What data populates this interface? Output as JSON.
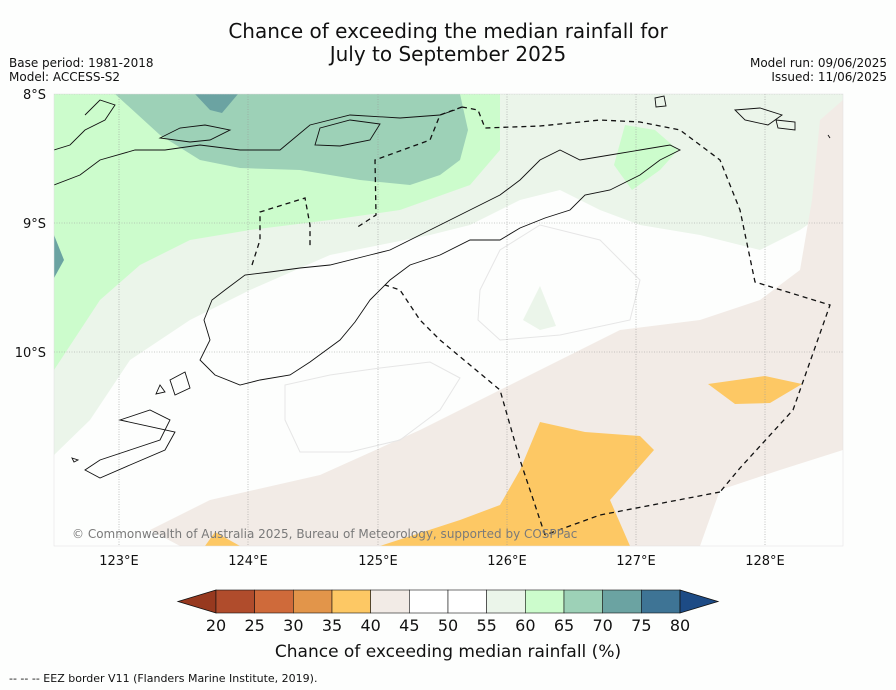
{
  "title_line1": "Chance of exceeding the median rainfall for",
  "title_line2": "July to September 2025",
  "meta_left": [
    "Base period: 1981-2018",
    "Model: ACCESS-S2"
  ],
  "meta_right": [
    "Model run: 09/06/2025",
    "Issued: 11/06/2025"
  ],
  "lat_labels": [
    "8°S",
    "9°S",
    "10°S"
  ],
  "lon_labels": [
    "123°E",
    "124°E",
    "125°E",
    "126°E",
    "127°E",
    "128°E"
  ],
  "copyright": "© Commonwealth of Australia 2025, Bureau of Meteorology, supported by COSPPac",
  "colorbar": {
    "label": "Chance of exceeding median rainfall (%)",
    "ticks": [
      "20",
      "25",
      "30",
      "35",
      "40",
      "45",
      "50",
      "55",
      "60",
      "65",
      "70",
      "75",
      "80"
    ],
    "colors": [
      "#b04c2c",
      "#cf6a3a",
      "#e2954a",
      "#fdc864",
      "#f2ebe6",
      "#ffffff",
      "#ffffff",
      "#ebf5ea",
      "#ccfccc",
      "#9dd1b7",
      "#6ba3a2",
      "#3e7495"
    ],
    "low_color": "#97391f",
    "high_color": "#1d4b85"
  },
  "footer": "-- -- -- EEZ border V11 (Flanders Marine Institute, 2019)."
}
